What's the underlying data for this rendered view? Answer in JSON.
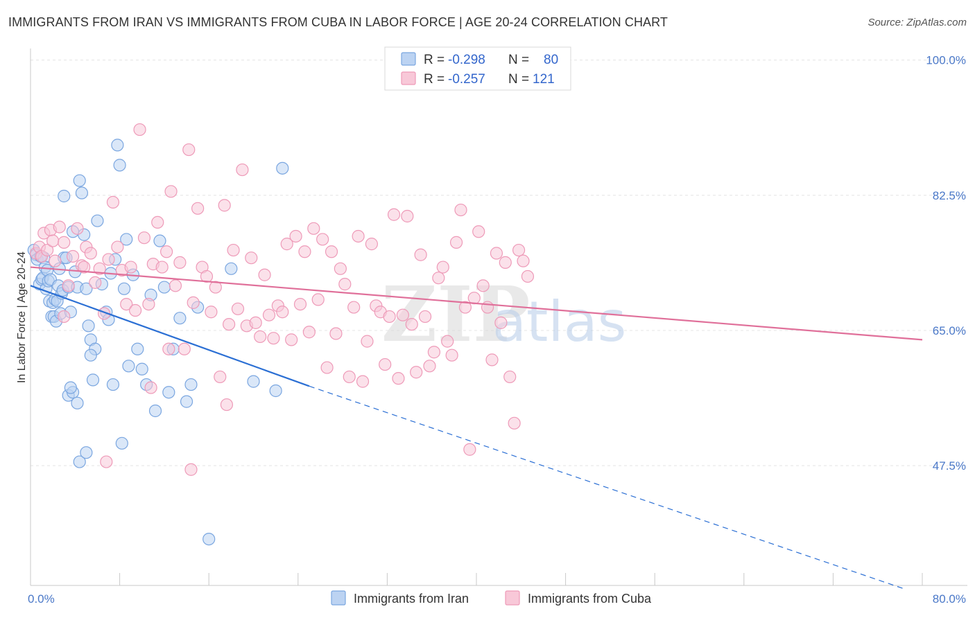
{
  "chart_data": {
    "type": "scatter",
    "title": "IMMIGRANTS FROM IRAN VS IMMIGRANTS FROM CUBA IN LABOR FORCE | AGE 20-24 CORRELATION CHART",
    "source": "Source: ZipAtlas.com",
    "ylabel": "In Labor Force | Age 20-24",
    "xlim": [
      0,
      80
    ],
    "ylim": [
      32,
      101.5
    ],
    "x_ticks": [
      "0.0%",
      "80.0%"
    ],
    "y_ticks": [
      {
        "value": 100.0,
        "label": "100.0%"
      },
      {
        "value": 82.5,
        "label": "82.5%"
      },
      {
        "value": 65.0,
        "label": "65.0%"
      },
      {
        "value": 47.5,
        "label": "47.5%"
      }
    ],
    "watermark": {
      "zip": "ZIP",
      "atlas": "atlas"
    },
    "legend": [
      {
        "r_label": "R =",
        "r_value": "-0.298",
        "n_label": "N =",
        "n_value": "80"
      },
      {
        "r_label": "R =",
        "r_value": "-0.257",
        "n_label": "N =",
        "n_value": "121"
      }
    ],
    "series": [
      {
        "name": "Immigrants from Iran",
        "color": "#7aa6e0",
        "fill": "#bcd3f2",
        "line_color": "#2b6fd4",
        "trend": {
          "x0": 0,
          "y0": 70.8,
          "x1": 25,
          "y1": 57.8,
          "dash_to_x": 78.5,
          "dash_to_y": 31.5
        },
        "points": [
          [
            0.3,
            75.4
          ],
          [
            0.5,
            74.8
          ],
          [
            0.6,
            74.2
          ],
          [
            0.8,
            71.0
          ],
          [
            0.9,
            74.6
          ],
          [
            1.0,
            71.6
          ],
          [
            1.1,
            71.8
          ],
          [
            1.2,
            74.4
          ],
          [
            1.3,
            73.2
          ],
          [
            1.4,
            70.4
          ],
          [
            1.5,
            72.8
          ],
          [
            1.6,
            71.4
          ],
          [
            1.7,
            68.8
          ],
          [
            1.8,
            71.6
          ],
          [
            1.9,
            66.8
          ],
          [
            2.0,
            68.6
          ],
          [
            2.1,
            66.8
          ],
          [
            2.2,
            69.0
          ],
          [
            2.3,
            66.2
          ],
          [
            2.4,
            68.8
          ],
          [
            2.5,
            70.8
          ],
          [
            2.6,
            73.0
          ],
          [
            2.7,
            67.2
          ],
          [
            2.8,
            69.8
          ],
          [
            2.9,
            70.2
          ],
          [
            3.0,
            74.4
          ],
          [
            3.2,
            74.4
          ],
          [
            3.4,
            70.6
          ],
          [
            3.6,
            67.4
          ],
          [
            3.8,
            77.8
          ],
          [
            4.0,
            72.6
          ],
          [
            4.2,
            70.6
          ],
          [
            4.4,
            84.4
          ],
          [
            4.6,
            82.8
          ],
          [
            4.8,
            77.4
          ],
          [
            5.0,
            70.4
          ],
          [
            5.2,
            65.6
          ],
          [
            5.4,
            63.8
          ],
          [
            5.6,
            58.6
          ],
          [
            5.8,
            62.6
          ],
          [
            3.0,
            82.4
          ],
          [
            3.4,
            56.6
          ],
          [
            3.8,
            57.0
          ],
          [
            4.2,
            55.6
          ],
          [
            4.4,
            48.0
          ],
          [
            5.0,
            49.2
          ],
          [
            3.6,
            57.6
          ],
          [
            5.4,
            61.8
          ],
          [
            6.0,
            79.2
          ],
          [
            6.4,
            71.0
          ],
          [
            6.8,
            67.4
          ],
          [
            7.0,
            66.4
          ],
          [
            7.2,
            72.4
          ],
          [
            7.4,
            58.0
          ],
          [
            7.6,
            74.2
          ],
          [
            7.8,
            89.0
          ],
          [
            8.0,
            86.4
          ],
          [
            8.2,
            50.4
          ],
          [
            8.4,
            70.4
          ],
          [
            8.6,
            76.8
          ],
          [
            8.8,
            60.4
          ],
          [
            9.2,
            72.2
          ],
          [
            9.6,
            62.6
          ],
          [
            10.0,
            60.0
          ],
          [
            10.4,
            58.0
          ],
          [
            10.8,
            69.6
          ],
          [
            11.2,
            54.6
          ],
          [
            11.6,
            76.6
          ],
          [
            12.0,
            70.6
          ],
          [
            12.4,
            57.0
          ],
          [
            12.8,
            62.6
          ],
          [
            13.4,
            66.6
          ],
          [
            14.0,
            55.8
          ],
          [
            14.4,
            58.0
          ],
          [
            15.0,
            68.0
          ],
          [
            16.0,
            38.0
          ],
          [
            18.0,
            73.0
          ],
          [
            20.0,
            58.4
          ],
          [
            22.0,
            57.2
          ],
          [
            22.6,
            86.0
          ]
        ]
      },
      {
        "name": "Immigrants from Cuba",
        "color": "#ee9ab8",
        "fill": "#f8c8d8",
        "line_color": "#e0709a",
        "trend": {
          "x0": 0,
          "y0": 73.2,
          "x1": 80,
          "y1": 63.8
        },
        "points": [
          [
            0.5,
            75.0
          ],
          [
            0.8,
            75.8
          ],
          [
            1.0,
            74.6
          ],
          [
            1.2,
            77.6
          ],
          [
            1.5,
            75.4
          ],
          [
            1.8,
            78.0
          ],
          [
            2.0,
            76.6
          ],
          [
            2.2,
            74.0
          ],
          [
            2.6,
            78.4
          ],
          [
            3.0,
            76.4
          ],
          [
            3.4,
            70.8
          ],
          [
            3.8,
            74.6
          ],
          [
            4.2,
            78.2
          ],
          [
            4.6,
            73.4
          ],
          [
            5.0,
            75.8
          ],
          [
            5.4,
            75.0
          ],
          [
            5.8,
            71.2
          ],
          [
            6.2,
            73.0
          ],
          [
            6.6,
            67.2
          ],
          [
            7.0,
            74.2
          ],
          [
            7.4,
            81.6
          ],
          [
            7.8,
            75.8
          ],
          [
            8.2,
            72.8
          ],
          [
            8.6,
            68.4
          ],
          [
            9.0,
            73.2
          ],
          [
            9.4,
            67.6
          ],
          [
            9.8,
            91.0
          ],
          [
            10.2,
            77.0
          ],
          [
            10.6,
            68.4
          ],
          [
            11.0,
            73.6
          ],
          [
            11.4,
            79.0
          ],
          [
            11.8,
            73.2
          ],
          [
            12.2,
            75.2
          ],
          [
            12.6,
            83.0
          ],
          [
            13.0,
            70.8
          ],
          [
            13.4,
            73.8
          ],
          [
            13.8,
            62.6
          ],
          [
            14.2,
            88.4
          ],
          [
            14.6,
            68.6
          ],
          [
            15.0,
            80.8
          ],
          [
            15.4,
            73.2
          ],
          [
            15.8,
            72.0
          ],
          [
            16.2,
            67.4
          ],
          [
            16.6,
            70.6
          ],
          [
            17.0,
            59.0
          ],
          [
            17.4,
            81.2
          ],
          [
            17.8,
            65.8
          ],
          [
            18.2,
            75.4
          ],
          [
            18.6,
            67.8
          ],
          [
            19.0,
            85.8
          ],
          [
            19.4,
            65.6
          ],
          [
            19.8,
            74.4
          ],
          [
            20.2,
            66.0
          ],
          [
            20.6,
            64.2
          ],
          [
            21.0,
            72.2
          ],
          [
            21.4,
            67.0
          ],
          [
            21.8,
            64.0
          ],
          [
            22.2,
            68.2
          ],
          [
            22.6,
            67.4
          ],
          [
            23.0,
            76.2
          ],
          [
            23.4,
            63.8
          ],
          [
            23.8,
            77.2
          ],
          [
            24.2,
            68.4
          ],
          [
            24.6,
            75.2
          ],
          [
            25.0,
            64.8
          ],
          [
            25.4,
            78.2
          ],
          [
            25.8,
            69.0
          ],
          [
            26.2,
            76.8
          ],
          [
            26.6,
            60.2
          ],
          [
            27.0,
            75.2
          ],
          [
            27.4,
            64.6
          ],
          [
            27.8,
            73.0
          ],
          [
            28.2,
            71.0
          ],
          [
            28.6,
            59.0
          ],
          [
            29.0,
            68.0
          ],
          [
            29.4,
            77.2
          ],
          [
            29.8,
            58.4
          ],
          [
            30.2,
            63.6
          ],
          [
            30.6,
            76.2
          ],
          [
            31.0,
            68.2
          ],
          [
            31.4,
            67.4
          ],
          [
            31.8,
            60.6
          ],
          [
            32.2,
            66.8
          ],
          [
            32.6,
            80.0
          ],
          [
            33.0,
            58.8
          ],
          [
            33.4,
            67.0
          ],
          [
            33.8,
            79.8
          ],
          [
            34.2,
            65.8
          ],
          [
            34.6,
            59.6
          ],
          [
            35.0,
            74.8
          ],
          [
            35.4,
            66.8
          ],
          [
            35.8,
            60.4
          ],
          [
            36.2,
            62.2
          ],
          [
            36.6,
            71.8
          ],
          [
            37.0,
            73.2
          ],
          [
            37.4,
            63.6
          ],
          [
            37.8,
            61.8
          ],
          [
            38.2,
            76.4
          ],
          [
            38.6,
            80.6
          ],
          [
            39.0,
            68.0
          ],
          [
            39.4,
            49.6
          ],
          [
            39.8,
            69.2
          ],
          [
            40.2,
            77.8
          ],
          [
            40.6,
            70.8
          ],
          [
            41.0,
            68.0
          ],
          [
            41.4,
            61.2
          ],
          [
            41.8,
            75.0
          ],
          [
            42.2,
            66.0
          ],
          [
            42.6,
            73.8
          ],
          [
            43.0,
            59.0
          ],
          [
            43.4,
            53.0
          ],
          [
            43.8,
            75.4
          ],
          [
            44.2,
            74.0
          ],
          [
            44.6,
            72.0
          ],
          [
            6.8,
            48.0
          ],
          [
            14.4,
            47.0
          ],
          [
            3.0,
            66.8
          ],
          [
            4.8,
            73.2
          ],
          [
            10.8,
            57.6
          ],
          [
            12.4,
            62.6
          ],
          [
            17.6,
            55.4
          ]
        ]
      }
    ]
  },
  "bottom_legend": [
    "Immigrants from Iran",
    "Immigrants from Cuba"
  ]
}
